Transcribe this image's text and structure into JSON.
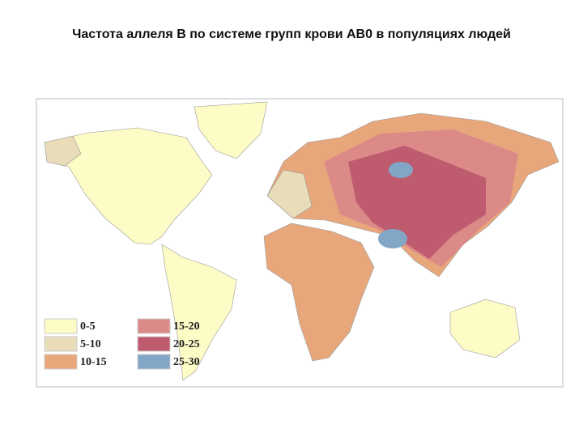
{
  "title": "Частота аллеля B по системе групп крови AB0 в популяциях людей",
  "legend": [
    {
      "label": "0-5",
      "color": "#fdfbc6"
    },
    {
      "label": "5-10",
      "color": "#e9dcb9"
    },
    {
      "label": "10-15",
      "color": "#e8a77b"
    },
    {
      "label": "15-20",
      "color": "#db8a87"
    },
    {
      "label": "20-25",
      "color": "#bf5b6f"
    },
    {
      "label": "25-30",
      "color": "#82a6c6"
    }
  ]
}
